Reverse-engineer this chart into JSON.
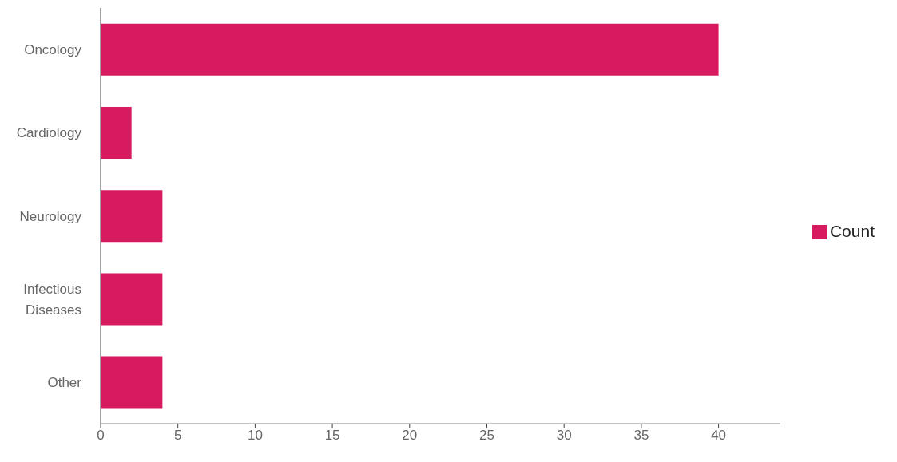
{
  "chart_data": {
    "type": "bar",
    "orientation": "horizontal",
    "categories": [
      "Oncology",
      "Cardiology",
      "Neurology",
      "Infectious Diseases",
      "Other"
    ],
    "series": [
      {
        "name": "Count",
        "color": "#d81b60",
        "values": [
          40,
          2,
          4,
          4,
          4
        ]
      }
    ],
    "xlim": [
      0,
      44
    ],
    "xticks": [
      0,
      5,
      10,
      15,
      20,
      25,
      30,
      35,
      40
    ],
    "grid": false,
    "legend": "right"
  }
}
